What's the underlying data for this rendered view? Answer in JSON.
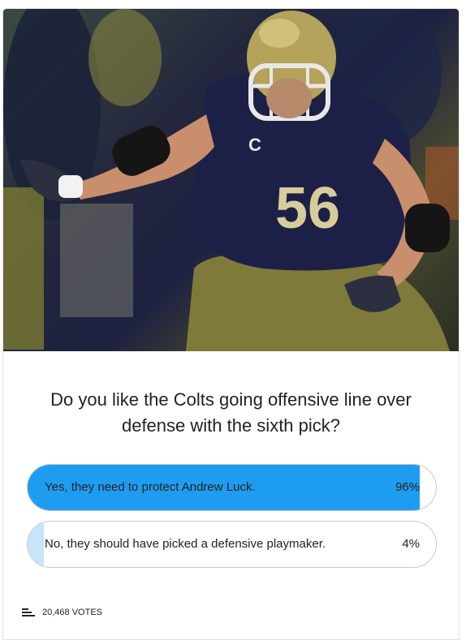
{
  "poll": {
    "image_alt": "Football lineman in navy jersey number 56 with gold helmet",
    "jersey_number": "56",
    "captain_patch": "C",
    "question": "Do you like the Colts going offensive line over defense with the sixth pick?",
    "options": [
      {
        "label": "Yes, they need to protect Andrew Luck.",
        "percent_text": "96%",
        "percent": 96,
        "fill_color": "#1e9df0"
      },
      {
        "label": "No, they should have picked a defensive playmaker.",
        "percent_text": "4%",
        "percent": 4,
        "fill_color": "#c7e4f8"
      }
    ],
    "votes_text": "20,468 VOTES",
    "votes_icon": "bar-chart-icon"
  }
}
